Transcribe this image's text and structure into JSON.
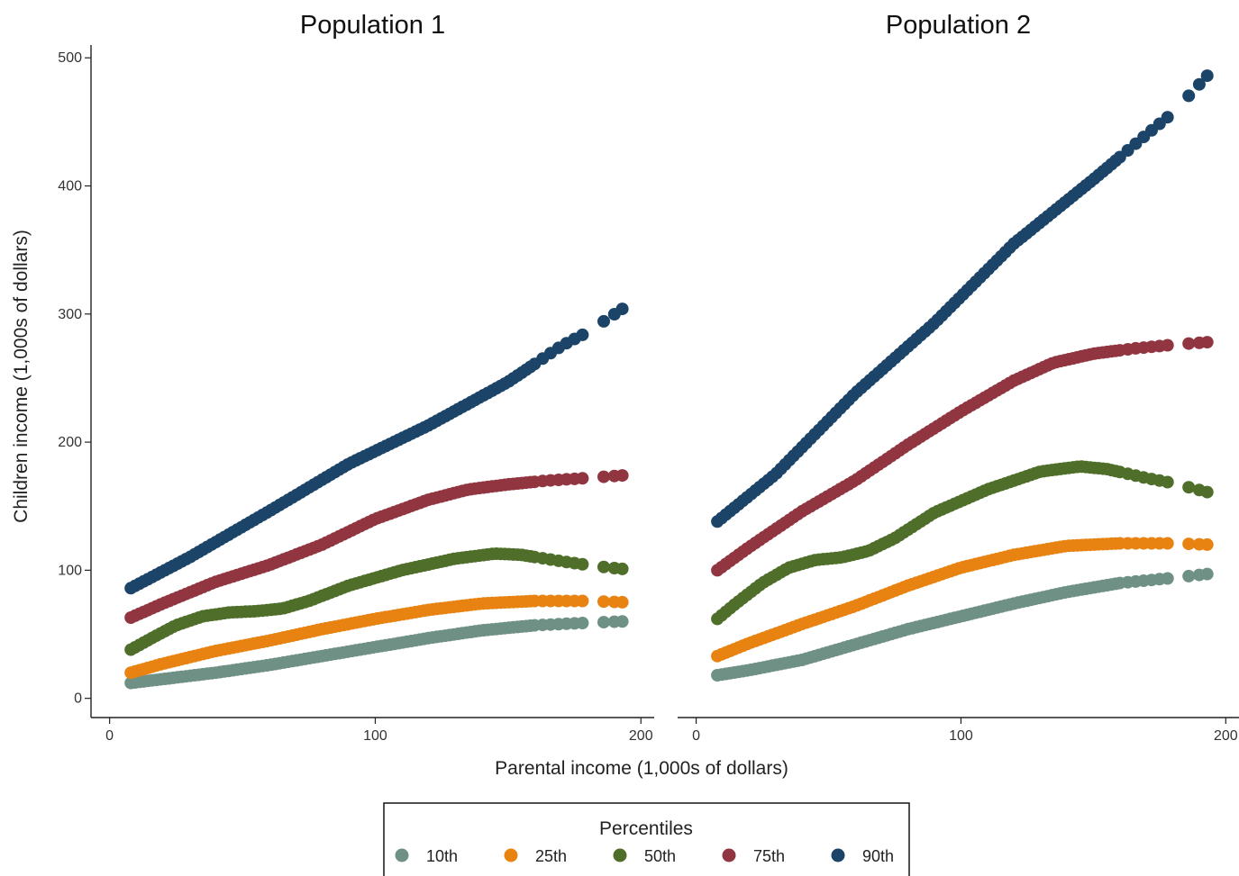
{
  "chart_data": {
    "type": "scatter",
    "y_axis": {
      "label": "Children income (1,000s of dollars)",
      "ylim": [
        -15,
        510
      ],
      "ticks": [
        0,
        100,
        200,
        300,
        400,
        500
      ]
    },
    "x_axis": {
      "label": "Parental income (1,000s of dollars)",
      "xlim": [
        -7,
        205
      ],
      "ticks": [
        0,
        100,
        200
      ]
    },
    "legend": {
      "title": "Percentiles",
      "placement": "bottom",
      "entries": [
        {
          "label": "10th",
          "color": "#6f9085"
        },
        {
          "label": "25th",
          "color": "#e88312"
        },
        {
          "label": "50th",
          "color": "#4e6e2a"
        },
        {
          "label": "75th",
          "color": "#913540"
        },
        {
          "label": "90th",
          "color": "#1b4468"
        }
      ]
    },
    "panels": [
      {
        "title": "Population 1",
        "series": [
          {
            "name": "10th",
            "color": "#6f9085",
            "points": [
              [
                8,
                12
              ],
              [
                20,
                15
              ],
              [
                40,
                20
              ],
              [
                60,
                26
              ],
              [
                80,
                33
              ],
              [
                100,
                40
              ],
              [
                120,
                47
              ],
              [
                140,
                53
              ],
              [
                160,
                57
              ],
              [
                180,
                59
              ],
              [
                193,
                60
              ]
            ]
          },
          {
            "name": "25th",
            "color": "#e88312",
            "points": [
              [
                8,
                20
              ],
              [
                20,
                27
              ],
              [
                40,
                37
              ],
              [
                60,
                45
              ],
              [
                80,
                54
              ],
              [
                100,
                62
              ],
              [
                120,
                69
              ],
              [
                140,
                74
              ],
              [
                160,
                76
              ],
              [
                180,
                76
              ],
              [
                193,
                75
              ]
            ]
          },
          {
            "name": "50th",
            "color": "#4e6e2a",
            "points": [
              [
                8,
                38
              ],
              [
                15,
                46
              ],
              [
                25,
                57
              ],
              [
                35,
                64
              ],
              [
                45,
                67
              ],
              [
                55,
                68
              ],
              [
                65,
                70
              ],
              [
                75,
                76
              ],
              [
                90,
                88
              ],
              [
                110,
                100
              ],
              [
                130,
                109
              ],
              [
                145,
                113
              ],
              [
                155,
                112
              ],
              [
                170,
                107
              ],
              [
                180,
                104
              ],
              [
                193,
                101
              ]
            ]
          },
          {
            "name": "75th",
            "color": "#913540",
            "points": [
              [
                8,
                63
              ],
              [
                20,
                74
              ],
              [
                40,
                91
              ],
              [
                60,
                104
              ],
              [
                80,
                120
              ],
              [
                100,
                140
              ],
              [
                120,
                155
              ],
              [
                135,
                163
              ],
              [
                150,
                167
              ],
              [
                165,
                170
              ],
              [
                180,
                172
              ],
              [
                193,
                174
              ]
            ]
          },
          {
            "name": "90th",
            "color": "#1b4468",
            "points": [
              [
                8,
                86
              ],
              [
                30,
                110
              ],
              [
                60,
                146
              ],
              [
                90,
                183
              ],
              [
                120,
                213
              ],
              [
                150,
                247
              ],
              [
                170,
                275
              ],
              [
                180,
                286
              ],
              [
                193,
                304
              ]
            ]
          }
        ]
      },
      {
        "title": "Population 2",
        "series": [
          {
            "name": "10th",
            "color": "#6f9085",
            "points": [
              [
                8,
                18
              ],
              [
                20,
                22
              ],
              [
                40,
                30
              ],
              [
                60,
                42
              ],
              [
                80,
                54
              ],
              [
                100,
                64
              ],
              [
                120,
                74
              ],
              [
                140,
                83
              ],
              [
                160,
                90
              ],
              [
                180,
                94
              ],
              [
                193,
                97
              ]
            ]
          },
          {
            "name": "25th",
            "color": "#e88312",
            "points": [
              [
                8,
                33
              ],
              [
                20,
                43
              ],
              [
                40,
                58
              ],
              [
                60,
                72
              ],
              [
                80,
                88
              ],
              [
                100,
                102
              ],
              [
                120,
                112
              ],
              [
                140,
                119
              ],
              [
                160,
                121
              ],
              [
                180,
                121
              ],
              [
                193,
                120
              ]
            ]
          },
          {
            "name": "50th",
            "color": "#4e6e2a",
            "points": [
              [
                8,
                62
              ],
              [
                15,
                74
              ],
              [
                25,
                90
              ],
              [
                35,
                102
              ],
              [
                45,
                108
              ],
              [
                55,
                110
              ],
              [
                65,
                115
              ],
              [
                75,
                125
              ],
              [
                90,
                145
              ],
              [
                110,
                163
              ],
              [
                130,
                177
              ],
              [
                145,
                181
              ],
              [
                155,
                179
              ],
              [
                170,
                172
              ],
              [
                180,
                168
              ],
              [
                193,
                161
              ]
            ]
          },
          {
            "name": "75th",
            "color": "#913540",
            "points": [
              [
                8,
                100
              ],
              [
                20,
                118
              ],
              [
                40,
                146
              ],
              [
                60,
                170
              ],
              [
                80,
                198
              ],
              [
                100,
                224
              ],
              [
                120,
                248
              ],
              [
                135,
                262
              ],
              [
                150,
                269
              ],
              [
                165,
                273
              ],
              [
                180,
                276
              ],
              [
                193,
                278
              ]
            ]
          },
          {
            "name": "90th",
            "color": "#1b4468",
            "points": [
              [
                8,
                138
              ],
              [
                30,
                175
              ],
              [
                60,
                238
              ],
              [
                90,
                293
              ],
              [
                120,
                355
              ],
              [
                150,
                405
              ],
              [
                170,
                440
              ],
              [
                180,
                457
              ],
              [
                193,
                486
              ]
            ]
          }
        ]
      }
    ]
  }
}
